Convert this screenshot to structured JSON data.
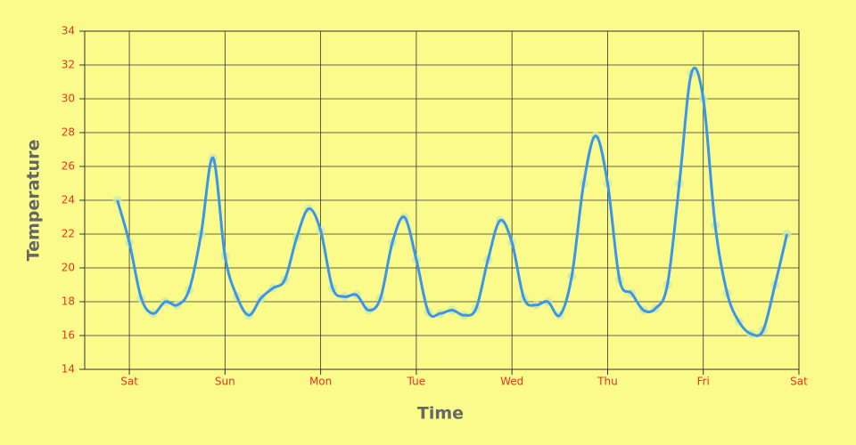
{
  "chart_data": {
    "type": "line",
    "x_label": "Time",
    "y_label": "Temperature",
    "x": [
      -3,
      0,
      3,
      6,
      9,
      12,
      15,
      18,
      21,
      24,
      27,
      30,
      33,
      36,
      39,
      42,
      45,
      48,
      51,
      54,
      57,
      60,
      63,
      66,
      69,
      72,
      75,
      78,
      81,
      84,
      87,
      90,
      93,
      96,
      99,
      102,
      105,
      108,
      111,
      114,
      117,
      120,
      123,
      126,
      129,
      132,
      135,
      138,
      141,
      144,
      147,
      150,
      153,
      156,
      159,
      162,
      165
    ],
    "values": [
      24,
      21.5,
      18.2,
      17.3,
      18,
      17.8,
      18.7,
      22,
      26.5,
      20.7,
      18.3,
      17.2,
      18.2,
      18.8,
      19.3,
      21.8,
      23.5,
      22.2,
      18.8,
      18.3,
      18.4,
      17.5,
      18.2,
      21.5,
      23,
      20.5,
      17.4,
      17.3,
      17.5,
      17.2,
      17.6,
      20.5,
      22.8,
      21.5,
      18.2,
      17.8,
      18,
      17.2,
      19.5,
      25,
      27.8,
      25,
      19.3,
      18.5,
      17.5,
      17.6,
      19,
      25,
      31.5,
      30,
      22.5,
      18.5,
      16.8,
      16.1,
      16.3,
      19,
      22
    ],
    "color": "#3a96e8",
    "marker_color": "#cdeaa8",
    "xlim": [
      -11.2,
      168
    ],
    "xticks": [
      {
        "value": 0,
        "label": "Sat"
      },
      {
        "value": 24,
        "label": "Sun"
      },
      {
        "value": 48,
        "label": "Mon"
      },
      {
        "value": 72,
        "label": "Tue"
      },
      {
        "value": 96,
        "label": "Wed"
      },
      {
        "value": 120,
        "label": "Thu"
      },
      {
        "value": 144,
        "label": "Fri"
      },
      {
        "value": 168,
        "label": "Sat"
      }
    ],
    "ylim": [
      14,
      34
    ],
    "yticks": [
      14,
      16,
      18,
      20,
      22,
      24,
      26,
      28,
      30,
      32,
      34
    ],
    "grid": true
  }
}
